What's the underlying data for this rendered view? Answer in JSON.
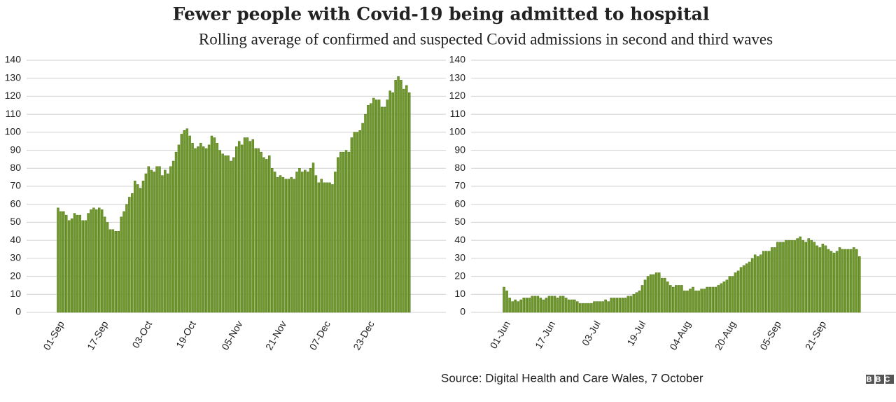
{
  "title": "Fewer people with Covid-19 being admitted to hospital",
  "subtitle": "Rolling average of confirmed and suspected Covid admissions in second and third waves",
  "source": "Source: Digital Health and Care Wales, 7 October",
  "logo": "BBC",
  "chart_data": [
    {
      "type": "bar",
      "color": "#6f9a2b",
      "ylim": [
        0,
        140
      ],
      "yticks": [
        0,
        10,
        20,
        30,
        40,
        50,
        60,
        70,
        80,
        90,
        100,
        110,
        120,
        130,
        140
      ],
      "grid": true,
      "categories": [
        "01-Sep",
        null,
        null,
        null,
        null,
        null,
        null,
        null,
        null,
        null,
        null,
        null,
        null,
        null,
        null,
        null,
        "17-Sep",
        null,
        null,
        null,
        null,
        null,
        null,
        null,
        null,
        null,
        null,
        null,
        null,
        null,
        null,
        null,
        "03-Oct",
        null,
        null,
        null,
        null,
        null,
        null,
        null,
        null,
        null,
        null,
        null,
        null,
        null,
        null,
        null,
        "19-Oct",
        null,
        null,
        null,
        null,
        null,
        null,
        null,
        null,
        null,
        null,
        null,
        null,
        null,
        null,
        null,
        null,
        "05-Nov",
        null,
        null,
        null,
        null,
        null,
        null,
        null,
        null,
        null,
        null,
        null,
        null,
        null,
        null,
        null,
        "21-Nov",
        null,
        null,
        null,
        null,
        null,
        null,
        null,
        null,
        null,
        null,
        null,
        null,
        null,
        null,
        null,
        "07-Dec",
        null,
        null,
        null,
        null,
        null,
        null,
        null,
        null,
        null,
        null,
        null,
        null,
        null,
        null,
        null,
        "23-Dec",
        null,
        null,
        null,
        null,
        null,
        null,
        null,
        null,
        null,
        null,
        null,
        null,
        null,
        null,
        null
      ],
      "values": [
        58,
        56,
        56,
        54,
        51,
        52,
        55,
        54,
        54,
        51,
        51,
        55,
        57,
        58,
        57,
        58,
        57,
        53,
        50,
        46,
        46,
        45,
        45,
        53,
        56,
        60,
        64,
        66,
        73,
        71,
        69,
        73,
        77,
        81,
        79,
        78,
        81,
        81,
        76,
        79,
        77,
        81,
        84,
        89,
        93,
        99,
        101,
        102,
        98,
        94,
        91,
        92,
        94,
        92,
        91,
        93,
        98,
        97,
        94,
        90,
        88,
        87,
        87,
        84,
        86,
        92,
        95,
        93,
        97,
        97,
        95,
        96,
        91,
        91,
        89,
        86,
        85,
        87,
        80,
        78,
        75,
        76,
        75,
        74,
        74,
        75,
        74,
        78,
        80,
        78,
        79,
        78,
        80,
        83,
        76,
        72,
        74,
        72,
        72,
        72,
        71,
        78,
        86,
        89,
        89,
        90,
        89,
        97,
        100,
        100,
        101,
        105,
        110,
        115,
        116,
        119,
        118,
        118,
        114,
        114,
        118,
        123,
        122,
        129,
        131,
        129,
        124,
        126,
        122
      ]
    },
    {
      "type": "bar",
      "color": "#6f9a2b",
      "ylim": [
        0,
        140
      ],
      "yticks": [
        0,
        10,
        20,
        30,
        40,
        50,
        60,
        70,
        80,
        90,
        100,
        110,
        120,
        130,
        140
      ],
      "grid": true,
      "categories": [
        "01-Jun",
        null,
        null,
        null,
        null,
        null,
        null,
        null,
        null,
        null,
        null,
        null,
        null,
        null,
        null,
        null,
        "17-Jun",
        null,
        null,
        null,
        null,
        null,
        null,
        null,
        null,
        null,
        null,
        null,
        null,
        null,
        null,
        null,
        "03-Jul",
        null,
        null,
        null,
        null,
        null,
        null,
        null,
        null,
        null,
        null,
        null,
        null,
        null,
        null,
        null,
        "19-Jul",
        null,
        null,
        null,
        null,
        null,
        null,
        null,
        null,
        null,
        null,
        null,
        null,
        null,
        null,
        null,
        "04-Aug",
        null,
        null,
        null,
        null,
        null,
        null,
        null,
        null,
        null,
        null,
        null,
        null,
        null,
        null,
        null,
        "20-Aug",
        null,
        null,
        null,
        null,
        null,
        null,
        null,
        null,
        null,
        null,
        null,
        null,
        null,
        null,
        null,
        "05-Sep",
        null,
        null,
        null,
        null,
        null,
        null,
        null,
        null,
        null,
        null,
        null,
        null,
        null,
        null,
        null,
        "21-Sep",
        null,
        null,
        null,
        null,
        null,
        null,
        null,
        null,
        null,
        null,
        null,
        null,
        null,
        null
      ],
      "values": [
        14,
        12,
        8,
        6,
        7,
        6,
        7,
        8,
        8,
        8,
        9,
        9,
        9,
        8,
        7,
        8,
        9,
        9,
        9,
        8,
        9,
        9,
        8,
        7,
        7,
        7,
        6,
        5,
        5,
        5,
        5,
        5,
        6,
        6,
        6,
        6,
        7,
        6,
        8,
        8,
        8,
        8,
        8,
        8,
        9,
        9,
        10,
        11,
        12,
        15,
        18,
        20,
        21,
        21,
        22,
        22,
        19,
        19,
        17,
        15,
        14,
        15,
        15,
        15,
        12,
        12,
        13,
        14,
        12,
        12,
        13,
        13,
        14,
        14,
        14,
        14,
        15,
        16,
        17,
        18,
        20,
        20,
        22,
        23,
        25,
        26,
        27,
        28,
        30,
        32,
        31,
        32,
        34,
        34,
        34,
        36,
        36,
        39,
        39,
        39,
        40,
        40,
        40,
        40,
        41,
        42,
        40,
        39,
        41,
        40,
        39,
        37,
        36,
        38,
        37,
        35,
        34,
        33,
        34,
        36,
        35,
        35,
        35,
        35,
        36,
        35,
        31
      ]
    }
  ]
}
